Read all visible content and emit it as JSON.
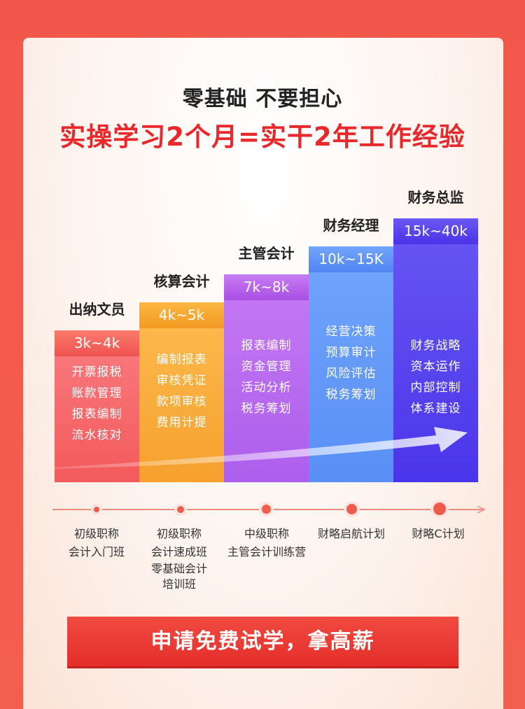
{
  "header": {
    "line1": "零基础 不要担心",
    "line2": "实操学习2个月=实干2年工作经验"
  },
  "ladder": [
    {
      "title": "出纳文员",
      "salary": "3k~4k",
      "items": [
        "开票报税",
        "账款管理",
        "报表编制",
        "流水核对"
      ]
    },
    {
      "title": "核算会计",
      "salary": "4k~5k",
      "items": [
        "编制报表",
        "审核凭证",
        "款项审核",
        "费用计提"
      ]
    },
    {
      "title": "主管会计",
      "salary": "7k~8k",
      "items": [
        "报表编制",
        "资金管理",
        "活动分析",
        "税务筹划"
      ]
    },
    {
      "title": "财务经理",
      "salary": "10k~15K",
      "items": [
        "经营决策",
        "预算审计",
        "风险评估",
        "税务筹划"
      ]
    },
    {
      "title": "财务总监",
      "salary": "15k~40k",
      "items": [
        "财务战略",
        "资本运作",
        "内部控制",
        "体系建设"
      ]
    }
  ],
  "timeline": [
    {
      "lines": [
        "初级职称",
        "会计入门班"
      ]
    },
    {
      "lines": [
        "初级职称",
        "会计速成班",
        "零基础会计",
        "培训班"
      ]
    },
    {
      "lines": [
        "中级职称",
        "主管会计训练营"
      ]
    },
    {
      "lines": [
        "财略启航计划"
      ]
    },
    {
      "lines": [
        "财略C计划"
      ]
    }
  ],
  "cta": {
    "label": "申请免费试学，拿高薪"
  },
  "colors": {
    "accent": "#e8282b",
    "col1": "#f35a58",
    "col2": "#f9a634",
    "col3": "#b35bec",
    "col4": "#5c95f8",
    "col5": "#5b3ff0"
  }
}
